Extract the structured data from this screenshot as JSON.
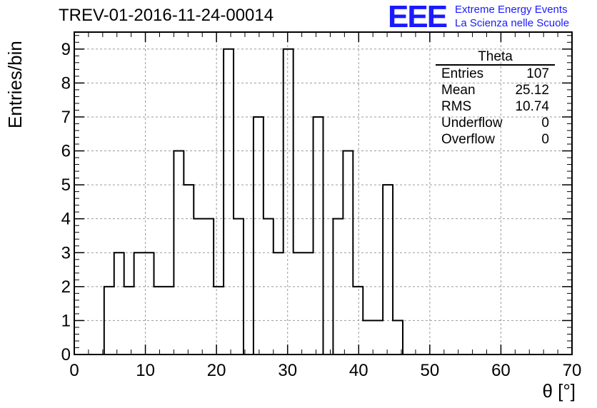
{
  "title": "TREV-01-2016-11-24-00014",
  "logo": {
    "mark": "EEE",
    "line1": "Extreme Energy Events",
    "line2": "La Scienza nelle Scuole"
  },
  "stats": {
    "name": "Theta",
    "rows": [
      {
        "label": "Entries",
        "value": "107"
      },
      {
        "label": "Mean",
        "value": "25.12"
      },
      {
        "label": "RMS",
        "value": "10.74"
      },
      {
        "label": "Underflow",
        "value": "0"
      },
      {
        "label": "Overflow",
        "value": "0"
      }
    ]
  },
  "colors": {
    "accent": "#1a1aff",
    "grid": "#9a9a9a",
    "line": "#000000"
  },
  "chart_data": {
    "type": "bar",
    "histogram": true,
    "xlabel": "θ [°]",
    "ylabel": "Entries/bin",
    "xlim": [
      0,
      70
    ],
    "ylim": [
      0,
      9.5
    ],
    "grid": true,
    "x_ticks": [
      0,
      10,
      20,
      30,
      40,
      50,
      60,
      70
    ],
    "y_ticks": [
      0,
      1,
      2,
      3,
      4,
      5,
      6,
      7,
      8,
      9
    ],
    "bin_edges": [
      4.2,
      5.6,
      7.0,
      8.4,
      9.8,
      11.2,
      12.6,
      14.0,
      15.4,
      16.8,
      18.2,
      19.6,
      21.0,
      22.4,
      23.8,
      25.2,
      26.6,
      28.0,
      29.4,
      30.8,
      32.2,
      33.6,
      35.0,
      36.4,
      37.8,
      39.2,
      40.6,
      42.0,
      43.4,
      44.8,
      46.2
    ],
    "values": [
      2,
      3,
      2,
      3,
      3,
      2,
      2,
      6,
      5,
      4,
      4,
      2,
      9,
      4,
      0,
      7,
      4,
      3,
      9,
      3,
      3,
      7,
      0,
      4,
      6,
      2,
      1,
      1,
      5,
      1
    ]
  }
}
